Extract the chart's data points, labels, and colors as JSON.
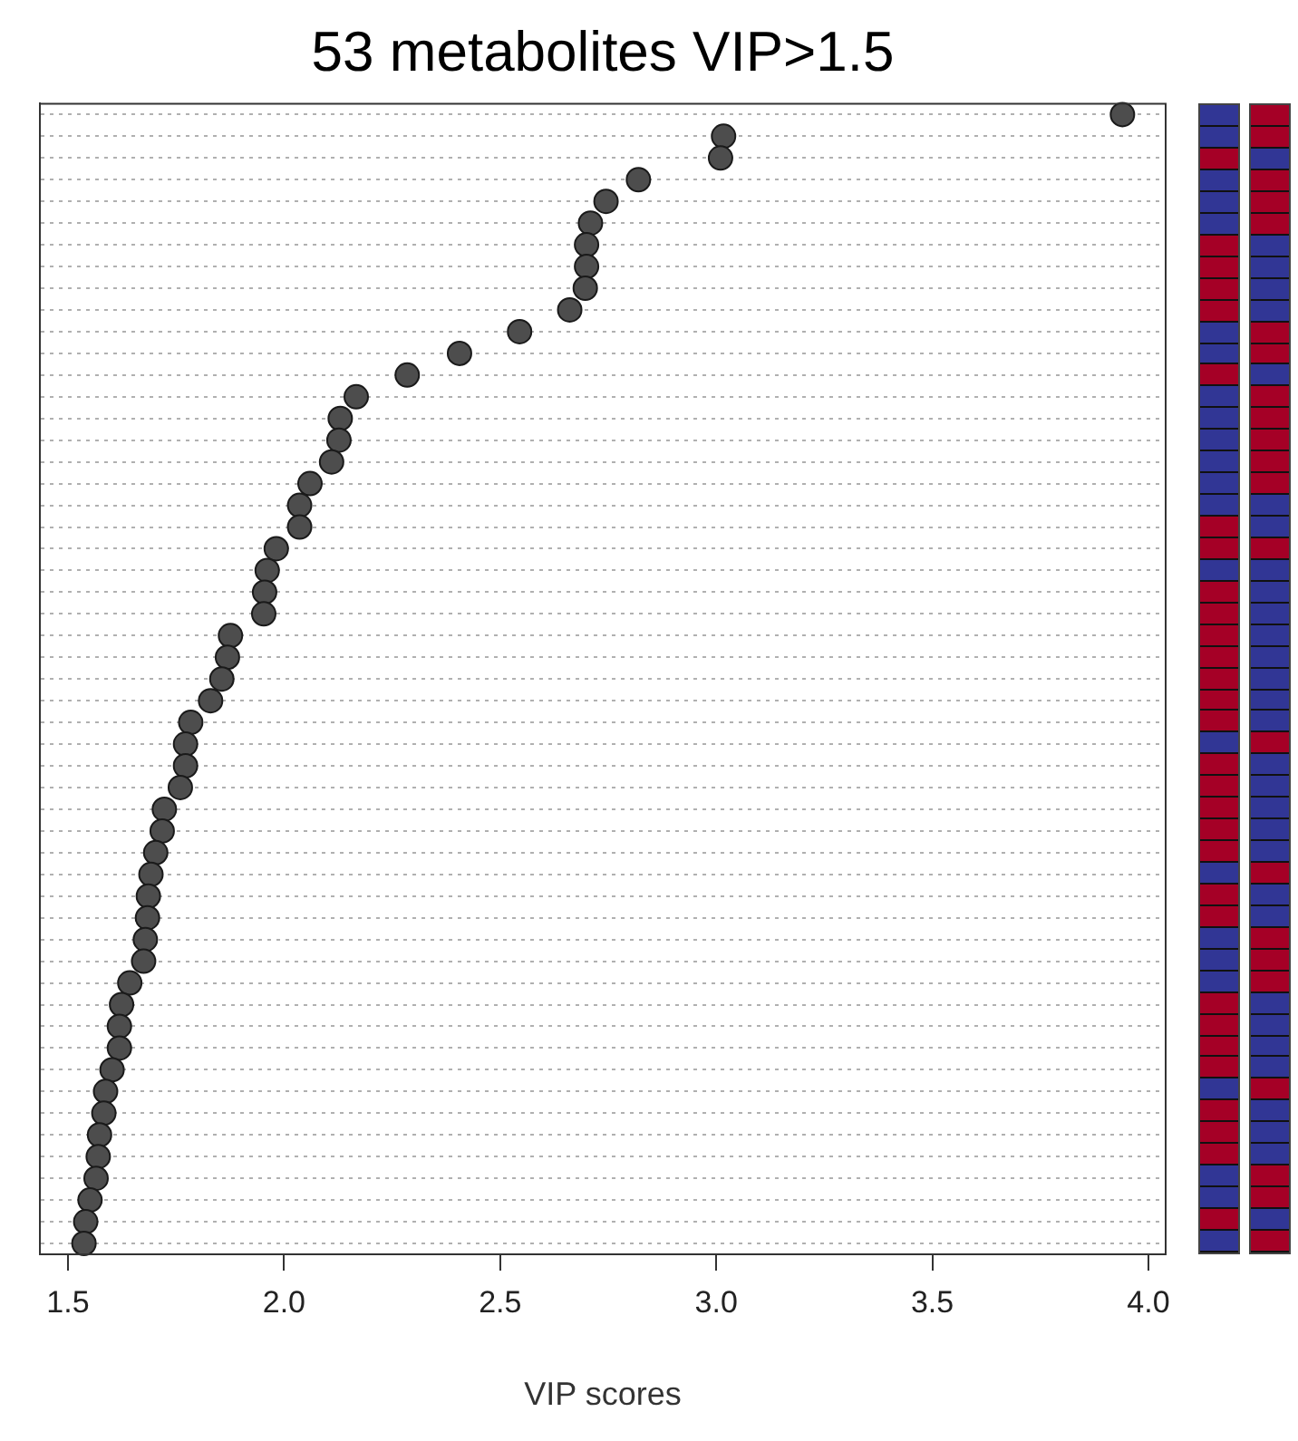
{
  "chart_data": {
    "type": "scatter",
    "title": "53 metabolites VIP>1.5",
    "xlabel": "VIP scores",
    "categories": [
      null,
      null,
      null,
      null,
      null,
      null,
      null,
      null,
      null,
      null,
      null,
      null,
      null,
      null,
      null,
      null,
      null,
      null,
      null,
      null,
      null,
      null,
      null,
      null,
      null,
      null,
      null,
      null,
      null,
      null,
      null,
      null,
      null,
      null,
      null,
      null,
      null,
      null,
      null,
      null,
      null,
      null,
      null,
      null,
      null,
      null,
      null,
      null,
      null,
      null,
      null,
      null,
      null
    ],
    "values": [
      3.94,
      3.017,
      3.01,
      2.82,
      2.745,
      2.709,
      2.7,
      2.7,
      2.697,
      2.661,
      2.545,
      2.406,
      2.285,
      2.167,
      2.13,
      2.127,
      2.11,
      2.06,
      2.036,
      2.036,
      1.982,
      1.961,
      1.955,
      1.953,
      1.876,
      1.869,
      1.856,
      1.83,
      1.784,
      1.772,
      1.772,
      1.76,
      1.723,
      1.718,
      1.703,
      1.692,
      1.686,
      1.684,
      1.679,
      1.675,
      1.643,
      1.624,
      1.619,
      1.619,
      1.602,
      1.587,
      1.583,
      1.573,
      1.57,
      1.565,
      1.551,
      1.541,
      1.537
    ],
    "color": "#4d4d4d",
    "xlim": [
      1.435,
      4.04
    ],
    "xticks": [
      1.5,
      {
        "value": 2,
        "label": "2.0"
      },
      2.5,
      {
        "value": 3,
        "label": "3.0"
      },
      3.5,
      {
        "value": 4,
        "label": "4.0"
      }
    ],
    "orientation": "horizontal",
    "grid": "y",
    "tick_labels": "x",
    "marker": "circle",
    "legend": false
  }
}
